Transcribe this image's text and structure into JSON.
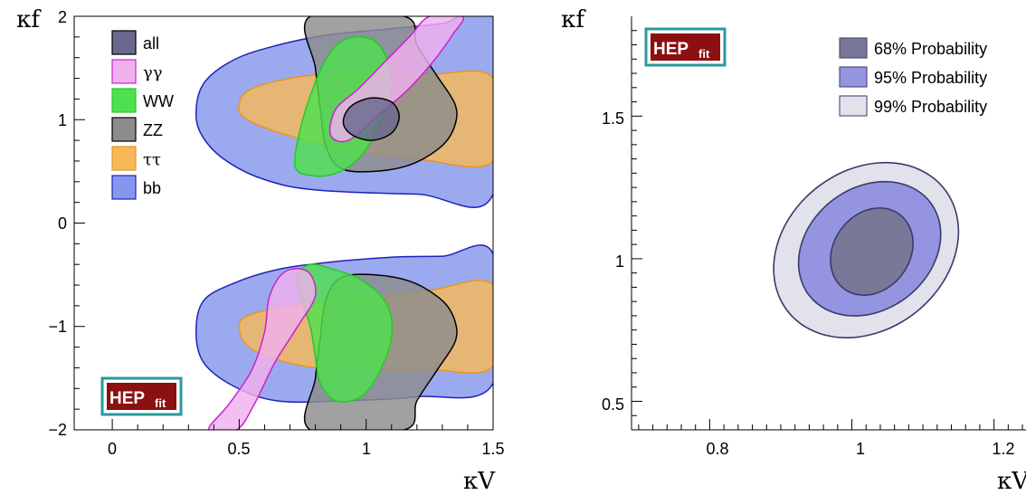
{
  "chart_data": [
    {
      "type": "contour",
      "xlabel": "κV",
      "ylabel": "κf",
      "xlim": [
        -0.15,
        1.5
      ],
      "ylim": [
        -2,
        2
      ],
      "xticks": [
        "0",
        "0.5",
        "1",
        "1.5"
      ],
      "yticks": [
        "−2",
        "−1",
        "0",
        "1",
        "2"
      ],
      "logo": {
        "main": "HEP",
        "sub": "fit",
        "placement": "bottom-left"
      },
      "legend": {
        "placement": "top-left",
        "entries": [
          {
            "label": "all",
            "color": "#6b6890",
            "edge": "#000000"
          },
          {
            "label": "γγ",
            "color": "#f0b0ee",
            "edge": "#cc22cc"
          },
          {
            "label": "WW",
            "color": "#4ee04e",
            "edge": "#22cc22"
          },
          {
            "label": "ZZ",
            "color": "#8c8c8c",
            "edge": "#000000"
          },
          {
            "label": "ττ",
            "color": "#f7b85a",
            "edge": "#e8961e"
          },
          {
            "label": "bb",
            "color": "#8597ec",
            "edge": "#2222bb"
          }
        ]
      },
      "series": [
        {
          "name": "bb",
          "color": "#8597ec",
          "edge": "#2222bb",
          "regions": [
            [
              [
                0.33,
                1.05
              ],
              [
                0.36,
                1.35
              ],
              [
                0.48,
                1.58
              ],
              [
                0.65,
                1.72
              ],
              [
                0.85,
                1.82
              ],
              [
                1.1,
                1.88
              ],
              [
                1.3,
                1.93
              ],
              [
                1.5,
                2.0
              ],
              [
                1.5,
                0.28
              ],
              [
                1.2,
                0.28
              ],
              [
                0.8,
                0.32
              ],
              [
                0.6,
                0.42
              ],
              [
                0.45,
                0.6
              ],
              [
                0.36,
                0.82
              ]
            ],
            [
              [
                0.33,
                -1.05
              ],
              [
                0.36,
                -0.75
              ],
              [
                0.48,
                -0.58
              ],
              [
                0.65,
                -0.45
              ],
              [
                0.85,
                -0.38
              ],
              [
                1.1,
                -0.33
              ],
              [
                1.3,
                -0.32
              ],
              [
                1.5,
                -0.3
              ],
              [
                1.5,
                -1.55
              ],
              [
                1.2,
                -1.68
              ],
              [
                0.9,
                -1.72
              ],
              [
                0.65,
                -1.72
              ],
              [
                0.48,
                -1.58
              ],
              [
                0.36,
                -1.35
              ]
            ]
          ]
        },
        {
          "name": "ττ",
          "color": "#f7b85a",
          "edge": "#e8961e",
          "regions": [
            [
              [
                0.5,
                1.15
              ],
              [
                0.55,
                1.3
              ],
              [
                0.75,
                1.42
              ],
              [
                1.0,
                1.46
              ],
              [
                1.25,
                1.44
              ],
              [
                1.5,
                1.4
              ],
              [
                1.5,
                0.6
              ],
              [
                1.2,
                0.62
              ],
              [
                0.9,
                0.72
              ],
              [
                0.65,
                0.88
              ],
              [
                0.52,
                1.02
              ]
            ],
            [
              [
                0.5,
                -1.0
              ],
              [
                0.55,
                -0.88
              ],
              [
                0.75,
                -0.78
              ],
              [
                1.0,
                -0.72
              ],
              [
                1.25,
                -0.65
              ],
              [
                1.5,
                -0.6
              ],
              [
                1.5,
                -1.38
              ],
              [
                1.25,
                -1.42
              ],
              [
                1.0,
                -1.42
              ],
              [
                0.75,
                -1.38
              ],
              [
                0.55,
                -1.22
              ]
            ]
          ]
        },
        {
          "name": "ZZ",
          "color": "#8c8c8c",
          "edge": "#000000",
          "regions": [
            [
              [
                0.78,
                2.0
              ],
              [
                1.15,
                2.0
              ],
              [
                1.2,
                1.72
              ],
              [
                1.28,
                1.42
              ],
              [
                1.35,
                1.15
              ],
              [
                1.35,
                0.95
              ],
              [
                1.3,
                0.75
              ],
              [
                1.18,
                0.57
              ],
              [
                1.03,
                0.5
              ],
              [
                0.9,
                0.53
              ],
              [
                0.84,
                0.75
              ],
              [
                0.82,
                1.1
              ],
              [
                0.8,
                1.5
              ]
            ],
            [
              [
                0.78,
                -2.0
              ],
              [
                1.15,
                -2.0
              ],
              [
                1.2,
                -1.72
              ],
              [
                1.28,
                -1.42
              ],
              [
                1.35,
                -1.15
              ],
              [
                1.35,
                -0.95
              ],
              [
                1.3,
                -0.75
              ],
              [
                1.18,
                -0.57
              ],
              [
                1.03,
                -0.5
              ],
              [
                0.9,
                -0.53
              ],
              [
                0.84,
                -0.75
              ],
              [
                0.82,
                -1.1
              ],
              [
                0.8,
                -1.5
              ]
            ]
          ]
        },
        {
          "name": "WW",
          "color": "#4ee04e",
          "edge": "#22cc22",
          "regions": [
            [
              [
                0.72,
                0.55
              ],
              [
                0.74,
                0.9
              ],
              [
                0.79,
                1.3
              ],
              [
                0.85,
                1.62
              ],
              [
                0.92,
                1.78
              ],
              [
                1.02,
                1.78
              ],
              [
                1.08,
                1.6
              ],
              [
                1.1,
                1.3
              ],
              [
                1.05,
                0.95
              ],
              [
                0.98,
                0.65
              ],
              [
                0.88,
                0.48
              ],
              [
                0.78,
                0.46
              ]
            ],
            [
              [
                0.78,
                -0.4
              ],
              [
                0.86,
                -0.44
              ],
              [
                0.98,
                -0.55
              ],
              [
                1.08,
                -0.78
              ],
              [
                1.1,
                -1.1
              ],
              [
                1.05,
                -1.45
              ],
              [
                0.98,
                -1.68
              ],
              [
                0.88,
                -1.72
              ],
              [
                0.82,
                -1.55
              ],
              [
                0.8,
                -1.3
              ],
              [
                0.78,
                -1.0
              ],
              [
                0.74,
                -0.7
              ],
              [
                0.73,
                -0.5
              ]
            ]
          ]
        },
        {
          "name": "γγ",
          "color": "#f0b0ee",
          "edge": "#cc22cc",
          "regions": [
            [
              [
                0.86,
                0.85
              ],
              [
                0.88,
                1.1
              ],
              [
                0.97,
                1.3
              ],
              [
                1.07,
                1.55
              ],
              [
                1.17,
                1.8
              ],
              [
                1.25,
                2.0
              ],
              [
                1.38,
                2.0
              ],
              [
                1.34,
                1.82
              ],
              [
                1.26,
                1.55
              ],
              [
                1.16,
                1.28
              ],
              [
                1.05,
                1.05
              ],
              [
                0.93,
                0.8
              ]
            ],
            [
              [
                0.38,
                -2.0
              ],
              [
                0.46,
                -1.75
              ],
              [
                0.55,
                -1.42
              ],
              [
                0.6,
                -1.05
              ],
              [
                0.62,
                -0.7
              ],
              [
                0.68,
                -0.47
              ],
              [
                0.77,
                -0.47
              ],
              [
                0.8,
                -0.7
              ],
              [
                0.73,
                -1.0
              ],
              [
                0.64,
                -1.35
              ],
              [
                0.56,
                -1.75
              ],
              [
                0.49,
                -2.0
              ]
            ]
          ]
        },
        {
          "name": "all",
          "color": "#6b6890",
          "edge": "#000000",
          "regions": [
            [
              [
                0.91,
                0.98
              ],
              [
                0.94,
                1.13
              ],
              [
                1.02,
                1.21
              ],
              [
                1.1,
                1.17
              ],
              [
                1.13,
                1.03
              ],
              [
                1.1,
                0.87
              ],
              [
                1.02,
                0.8
              ],
              [
                0.94,
                0.86
              ]
            ]
          ]
        }
      ]
    },
    {
      "type": "contour",
      "xlabel": "κV",
      "ylabel": "κf",
      "xlim": [
        0.69,
        1.245
      ],
      "ylim": [
        0.4,
        1.85
      ],
      "xticks": [
        "0.8",
        "1",
        "1.2"
      ],
      "yticks": [
        "0.5",
        "1",
        "1.5"
      ],
      "logo": {
        "main": "HEP",
        "sub": "fit",
        "placement": "top-left"
      },
      "legend": {
        "placement": "top-right",
        "entries": [
          {
            "label": "68% Probability",
            "color": "#7a7898",
            "edge": "#3a3a6a"
          },
          {
            "label": "95% Probability",
            "color": "#9494e0",
            "edge": "#3a3a6a"
          },
          {
            "label": "99% Probability",
            "color": "#e2e2ec",
            "edge": "#3a3a6a"
          }
        ]
      },
      "series": [
        {
          "name": "99% Probability",
          "color": "#e2e2ec",
          "edge": "#3a3a6a",
          "center": [
            1.02,
            1.03
          ],
          "rx": 0.13,
          "ry": 0.3,
          "tilt": 0.5
        },
        {
          "name": "95% Probability",
          "color": "#9494e0",
          "edge": "#3a3a6a",
          "center": [
            1.025,
            1.035
          ],
          "rx": 0.1,
          "ry": 0.23,
          "tilt": 0.5
        },
        {
          "name": "68% Probability",
          "color": "#7a7898",
          "edge": "#3a3a6a",
          "center": [
            1.028,
            1.025
          ],
          "rx": 0.058,
          "ry": 0.15,
          "tilt": 0.5
        }
      ]
    }
  ]
}
